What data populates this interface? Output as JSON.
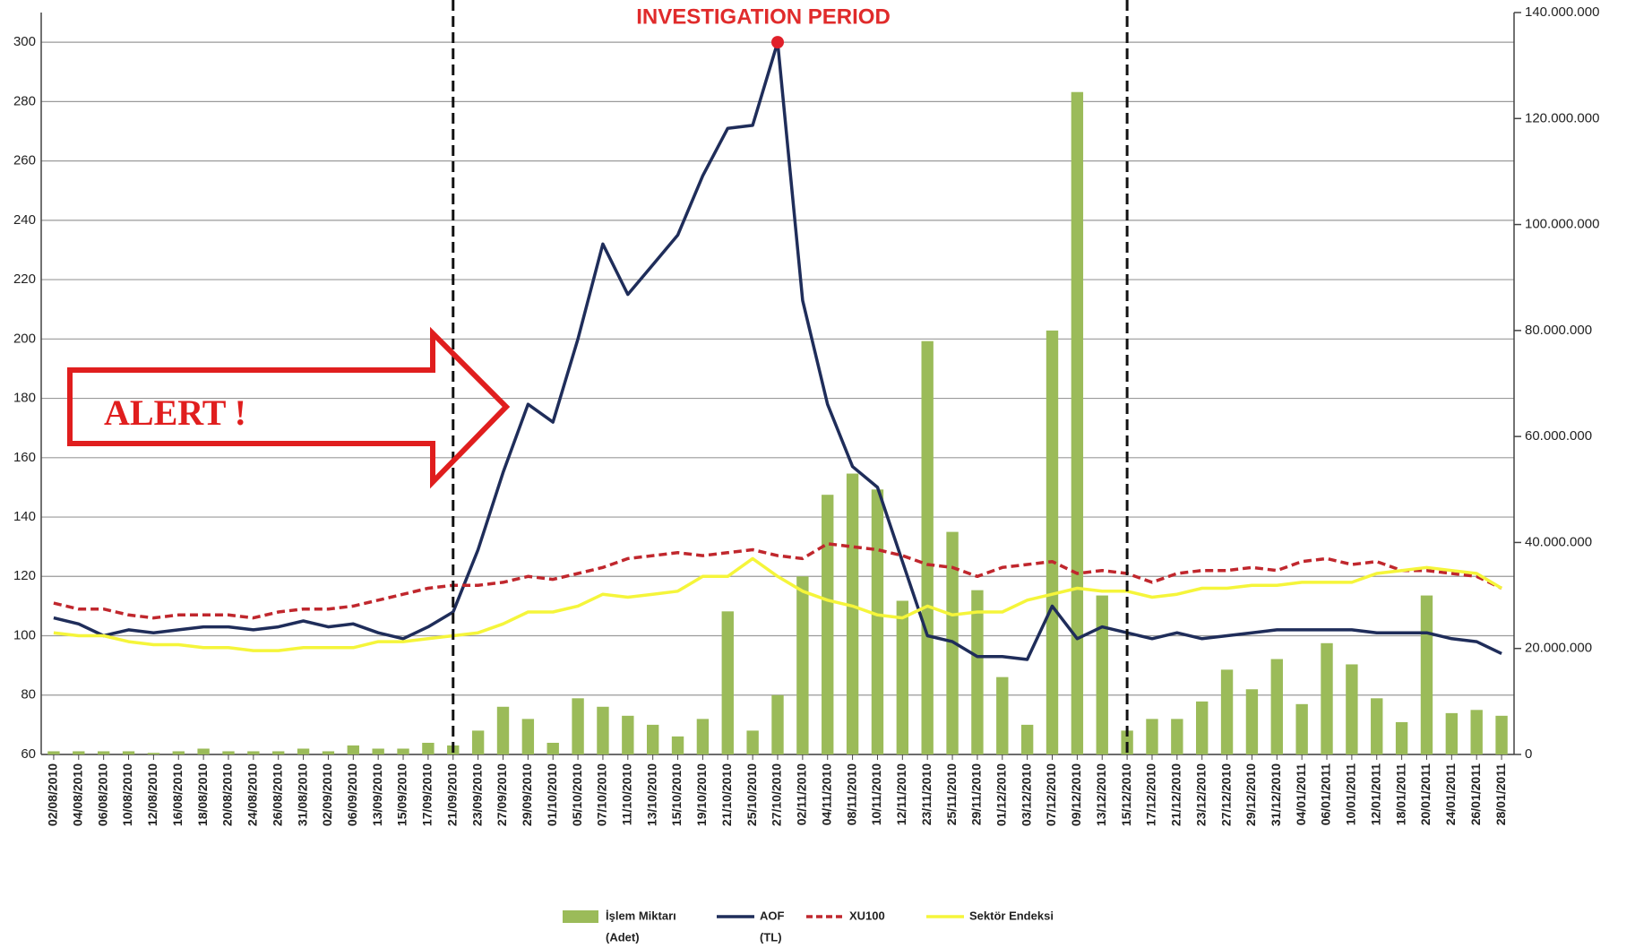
{
  "chart_data": {
    "type": "combo",
    "annotations": {
      "investigation_period": {
        "label": "INVESTIGATION PERIOD",
        "start": "21/09/2010",
        "end": "15/12/2010"
      },
      "alert": "ALERT !"
    },
    "categories": [
      "02/08/2010",
      "04/08/2010",
      "06/08/2010",
      "10/08/2010",
      "12/08/2010",
      "16/08/2010",
      "18/08/2010",
      "20/08/2010",
      "24/08/2010",
      "26/08/2010",
      "31/08/2010",
      "02/09/2010",
      "06/09/2010",
      "13/09/2010",
      "15/09/2010",
      "17/09/2010",
      "21/09/2010",
      "23/09/2010",
      "27/09/2010",
      "29/09/2010",
      "01/10/2010",
      "05/10/2010",
      "07/10/2010",
      "11/10/2010",
      "13/10/2010",
      "15/10/2010",
      "19/10/2010",
      "21/10/2010",
      "25/10/2010",
      "27/10/2010",
      "02/11/2010",
      "04/11/2010",
      "08/11/2010",
      "10/11/2010",
      "12/11/2010",
      "23/11/2010",
      "25/11/2010",
      "29/11/2010",
      "01/12/2010",
      "03/12/2010",
      "07/12/2010",
      "09/12/2010",
      "13/12/2010",
      "15/12/2010",
      "17/12/2010",
      "21/12/2010",
      "23/12/2010",
      "27/12/2010",
      "29/12/2010",
      "31/12/2010",
      "04/01/2011",
      "06/01/2011",
      "10/01/2011",
      "12/01/2011",
      "18/01/2011",
      "20/01/2011",
      "24/01/2011",
      "26/01/2011",
      "28/01/2011"
    ],
    "series": [
      {
        "name": "İşlem Miktarı",
        "unit": "(Adet)",
        "kind": "bar",
        "axis": "y2",
        "color": "#9bbb59",
        "values": [
          600000,
          600000,
          600000,
          600000,
          300000,
          600000,
          1100000,
          600000,
          600000,
          600000,
          1100000,
          600000,
          1700000,
          1100000,
          1100000,
          2200000,
          1700000,
          4500000,
          9000000,
          6700000,
          2200000,
          10600000,
          9000000,
          7300000,
          5600000,
          3400000,
          6700000,
          27000000,
          4500000,
          11200000,
          33600000,
          49000000,
          53000000,
          50000000,
          29000000,
          78000000,
          42000000,
          31000000,
          14600000,
          5600000,
          80000000,
          125000000,
          30000000,
          4500000,
          6700000,
          6700000,
          10000000,
          16000000,
          12300000,
          18000000,
          9500000,
          21000000,
          17000000,
          10600000,
          6100000,
          30000000,
          7800000,
          8400000,
          7300000
        ]
      },
      {
        "name": "AOF",
        "unit": "(TL)",
        "kind": "line",
        "color": "#1f2d5a",
        "dash": false,
        "values": [
          106,
          104,
          100,
          102,
          101,
          102,
          103,
          103,
          102,
          103,
          105,
          103,
          104,
          101,
          99,
          103,
          108,
          129,
          155,
          178,
          172,
          200,
          232,
          215,
          225,
          235,
          255,
          271,
          272,
          300,
          213,
          178,
          157,
          150,
          125,
          100,
          98,
          93,
          93,
          92,
          110,
          99,
          103,
          101,
          99,
          101,
          99,
          100,
          101,
          102,
          102,
          102,
          102,
          101,
          101,
          101,
          99,
          98,
          94
        ]
      },
      {
        "name": "XU100",
        "kind": "line",
        "color": "#c0272d",
        "dash": true,
        "values": [
          111,
          109,
          109,
          107,
          106,
          107,
          107,
          107,
          106,
          108,
          109,
          109,
          110,
          112,
          114,
          116,
          117,
          117,
          118,
          120,
          119,
          121,
          123,
          126,
          127,
          128,
          127,
          128,
          129,
          127,
          126,
          131,
          130,
          129,
          127,
          124,
          123,
          120,
          123,
          124,
          125,
          121,
          122,
          121,
          118,
          121,
          122,
          122,
          123,
          122,
          125,
          126,
          124,
          125,
          122,
          122,
          121,
          120,
          116
        ]
      },
      {
        "name": "Sektör Endeksi",
        "kind": "line",
        "color": "#f5f53a",
        "dash": false,
        "values": [
          101,
          100,
          100,
          98,
          97,
          97,
          96,
          96,
          95,
          95,
          96,
          96,
          96,
          98,
          98,
          99,
          100,
          101,
          104,
          108,
          108,
          110,
          114,
          113,
          114,
          115,
          120,
          120,
          126,
          120,
          115,
          112,
          110,
          107,
          106,
          110,
          107,
          108,
          108,
          112,
          114,
          116,
          115,
          115,
          113,
          114,
          116,
          116,
          117,
          117,
          118,
          118,
          118,
          121,
          122,
          123,
          122,
          121,
          116
        ]
      }
    ],
    "ylim": [
      60,
      310
    ],
    "yticks": [
      60,
      80,
      100,
      120,
      140,
      160,
      180,
      200,
      220,
      240,
      260,
      280,
      300
    ],
    "y2lim": [
      0,
      140000000
    ],
    "y2ticks": [
      0,
      {
        "value": 20000000,
        "label": "20.000.000"
      },
      {
        "value": 40000000,
        "label": "40.000.000"
      },
      {
        "value": 60000000,
        "label": "60.000.000"
      },
      {
        "value": 80000000,
        "label": "80.000.000"
      },
      {
        "value": 100000000,
        "label": "100.000.000"
      },
      {
        "value": 120000000,
        "label": "120.000.000"
      },
      {
        "value": 140000000,
        "label": "140.000.000"
      }
    ],
    "grid": true
  }
}
